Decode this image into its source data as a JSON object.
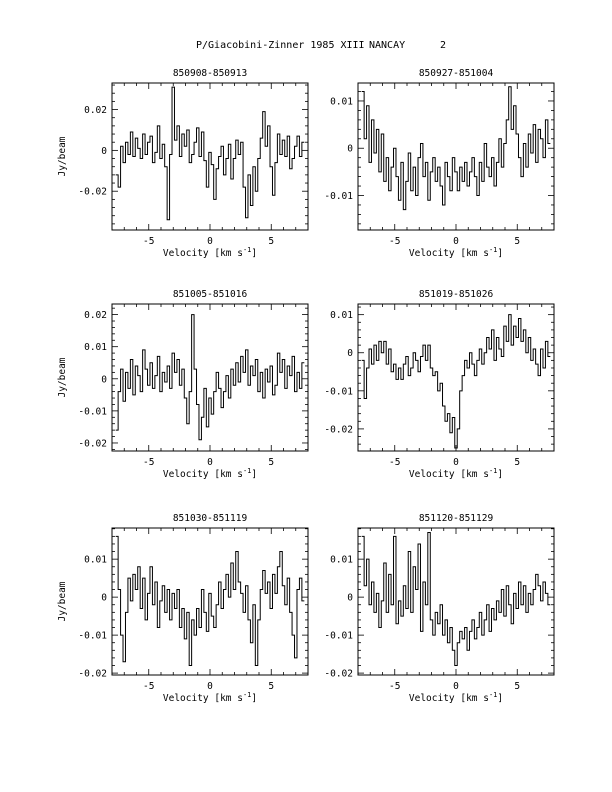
{
  "figure": {
    "title": "P/Giacobini-Zinner 1985 XIII",
    "site": "NANCAY",
    "page_number": "2",
    "line_color": "#000000"
  },
  "chart_data": [
    {
      "type": "line",
      "title": "850908-850913",
      "xlabel_main": "Velocity [km s",
      "xlabel_sup": "-1",
      "xlabel_end": "]",
      "ylabel": "Jy/beam",
      "xlim": [
        -8,
        8
      ],
      "ylim": [
        -0.039,
        0.033
      ],
      "xticks": [
        -5,
        0,
        5
      ],
      "yticks": [
        -0.02,
        0,
        0.02
      ],
      "yticklabels": [
        "-0.02",
        "0",
        "0.02"
      ],
      "x": [
        -7.6,
        -7.4,
        -7.2,
        -7.0,
        -6.8,
        -6.6,
        -6.4,
        -6.2,
        -6.0,
        -5.8,
        -5.6,
        -5.4,
        -5.2,
        -5.0,
        -4.8,
        -4.6,
        -4.4,
        -4.2,
        -4.0,
        -3.8,
        -3.6,
        -3.4,
        -3.2,
        -3.0,
        -2.8,
        -2.6,
        -2.4,
        -2.2,
        -2.0,
        -1.8,
        -1.6,
        -1.4,
        -1.2,
        -1.0,
        -0.8,
        -0.6,
        -0.4,
        -0.2,
        0.0,
        0.2,
        0.4,
        0.6,
        0.8,
        1.0,
        1.2,
        1.4,
        1.6,
        1.8,
        2.0,
        2.2,
        2.4,
        2.6,
        2.8,
        3.0,
        3.2,
        3.4,
        3.6,
        3.8,
        4.0,
        4.2,
        4.4,
        4.6,
        4.8,
        5.0,
        5.2,
        5.4,
        5.6,
        5.8,
        6.0,
        6.2,
        6.4,
        6.6,
        6.8,
        7.0,
        7.2,
        7.4,
        7.6
      ],
      "y": [
        -0.012,
        -0.018,
        0.002,
        -0.006,
        0.004,
        -0.002,
        0.009,
        -0.003,
        0.006,
        0.001,
        -0.004,
        0.008,
        -0.002,
        0.004,
        0.007,
        -0.006,
        -0.001,
        0.012,
        -0.004,
        0.003,
        -0.008,
        -0.034,
        -0.002,
        0.031,
        0.005,
        0.012,
        -0.003,
        0.008,
        0.002,
        0.01,
        -0.006,
        -0.002,
        0.004,
        0.011,
        -0.003,
        0.009,
        -0.005,
        -0.018,
        -0.001,
        -0.007,
        -0.024,
        -0.009,
        -0.003,
        0.002,
        -0.012,
        -0.004,
        0.003,
        -0.014,
        -0.004,
        0.005,
        -0.002,
        0.004,
        -0.018,
        -0.033,
        -0.012,
        -0.027,
        -0.008,
        -0.02,
        -0.004,
        0.006,
        0.019,
        0.002,
        0.012,
        -0.008,
        -0.022,
        -0.006,
        0.008,
        -0.002,
        0.005,
        -0.003,
        0.007,
        -0.009,
        -0.004,
        0.002,
        0.007,
        -0.003,
        0.004
      ]
    },
    {
      "type": "line",
      "title": "850927-851004",
      "xlabel_main": "Velocity [km s",
      "xlabel_sup": "-1",
      "xlabel_end": "]",
      "ylabel": "",
      "xlim": [
        -8,
        8
      ],
      "ylim": [
        -0.0173,
        0.0138
      ],
      "xticks": [
        -5,
        0,
        5
      ],
      "yticks": [
        -0.01,
        0,
        0.01
      ],
      "yticklabels": [
        "-0.01",
        "0",
        "0.01"
      ],
      "x": [
        -7.6,
        -7.4,
        -7.2,
        -7.0,
        -6.8,
        -6.6,
        -6.4,
        -6.2,
        -6.0,
        -5.8,
        -5.6,
        -5.4,
        -5.2,
        -5.0,
        -4.8,
        -4.6,
        -4.4,
        -4.2,
        -4.0,
        -3.8,
        -3.6,
        -3.4,
        -3.2,
        -3.0,
        -2.8,
        -2.6,
        -2.4,
        -2.2,
        -2.0,
        -1.8,
        -1.6,
        -1.4,
        -1.2,
        -1.0,
        -0.8,
        -0.6,
        -0.4,
        -0.2,
        0.0,
        0.2,
        0.4,
        0.6,
        0.8,
        1.0,
        1.2,
        1.4,
        1.6,
        1.8,
        2.0,
        2.2,
        2.4,
        2.6,
        2.8,
        3.0,
        3.2,
        3.4,
        3.6,
        3.8,
        4.0,
        4.2,
        4.4,
        4.6,
        4.8,
        5.0,
        5.2,
        5.4,
        5.6,
        5.8,
        6.0,
        6.2,
        6.4,
        6.6,
        6.8,
        7.0,
        7.2,
        7.4,
        7.6
      ],
      "y": [
        0.012,
        0.002,
        0.009,
        -0.003,
        0.006,
        -0.001,
        0.004,
        -0.005,
        0.003,
        -0.007,
        -0.002,
        -0.009,
        -0.004,
        0.0,
        -0.006,
        -0.011,
        -0.003,
        -0.013,
        -0.007,
        -0.001,
        -0.009,
        -0.004,
        -0.01,
        -0.002,
        0.001,
        -0.006,
        -0.003,
        -0.011,
        -0.005,
        -0.002,
        -0.007,
        -0.004,
        -0.008,
        -0.012,
        -0.003,
        -0.006,
        -0.009,
        -0.002,
        -0.005,
        -0.009,
        -0.004,
        -0.007,
        -0.003,
        -0.008,
        -0.005,
        -0.002,
        -0.006,
        -0.01,
        -0.003,
        -0.007,
        0.001,
        -0.004,
        -0.006,
        -0.002,
        -0.008,
        -0.003,
        0.002,
        -0.004,
        0.001,
        0.006,
        0.013,
        0.004,
        0.009,
        0.003,
        -0.002,
        -0.006,
        0.001,
        -0.004,
        0.003,
        -0.001,
        0.005,
        -0.003,
        0.004,
        0.002,
        -0.002,
        0.006,
        0.001
      ]
    },
    {
      "type": "line",
      "title": "851005-851016",
      "xlabel_main": "Velocity [km s",
      "xlabel_sup": "-1",
      "xlabel_end": "]",
      "ylabel": "Jy/beam",
      "xlim": [
        -8,
        8
      ],
      "ylim": [
        -0.0225,
        0.0233
      ],
      "xticks": [
        -5,
        0,
        5
      ],
      "yticks": [
        -0.02,
        -0.01,
        0,
        0.01,
        0.02
      ],
      "yticklabels": [
        "-0.02",
        "-0.01",
        "0",
        "0.01",
        "0.02"
      ],
      "x": [
        -7.6,
        -7.4,
        -7.2,
        -7.0,
        -6.8,
        -6.6,
        -6.4,
        -6.2,
        -6.0,
        -5.8,
        -5.6,
        -5.4,
        -5.2,
        -5.0,
        -4.8,
        -4.6,
        -4.4,
        -4.2,
        -4.0,
        -3.8,
        -3.6,
        -3.4,
        -3.2,
        -3.0,
        -2.8,
        -2.6,
        -2.4,
        -2.2,
        -2.0,
        -1.8,
        -1.6,
        -1.4,
        -1.2,
        -1.0,
        -0.8,
        -0.6,
        -0.4,
        -0.2,
        0.0,
        0.2,
        0.4,
        0.6,
        0.8,
        1.0,
        1.2,
        1.4,
        1.6,
        1.8,
        2.0,
        2.2,
        2.4,
        2.6,
        2.8,
        3.0,
        3.2,
        3.4,
        3.6,
        3.8,
        4.0,
        4.2,
        4.4,
        4.6,
        4.8,
        5.0,
        5.2,
        5.4,
        5.6,
        5.8,
        6.0,
        6.2,
        6.4,
        6.6,
        6.8,
        7.0,
        7.2,
        7.4,
        7.6
      ],
      "y": [
        -0.016,
        -0.004,
        0.003,
        -0.007,
        0.002,
        -0.003,
        0.006,
        -0.005,
        0.004,
        0.001,
        -0.004,
        0.009,
        0.003,
        -0.002,
        0.005,
        -0.003,
        0.001,
        0.007,
        -0.004,
        0.002,
        -0.001,
        0.004,
        -0.003,
        0.008,
        0.002,
        0.006,
        -0.002,
        0.003,
        -0.006,
        -0.014,
        -0.004,
        0.02,
        0.003,
        -0.008,
        -0.019,
        -0.012,
        -0.003,
        -0.015,
        -0.006,
        -0.011,
        -0.004,
        0.002,
        -0.003,
        -0.009,
        -0.004,
        0.001,
        -0.006,
        0.003,
        -0.002,
        0.005,
        -0.001,
        0.007,
        0.002,
        0.009,
        -0.002,
        0.004,
        0.001,
        0.006,
        -0.004,
        0.002,
        -0.006,
        0.003,
        -0.001,
        0.004,
        -0.005,
        -0.002,
        0.008,
        0.002,
        0.006,
        -0.003,
        0.004,
        0.001,
        0.007,
        -0.004,
        0.002,
        -0.003,
        0.005
      ]
    },
    {
      "type": "line",
      "title": "851019-851026",
      "xlabel_main": "Velocity [km s",
      "xlabel_sup": "-1",
      "xlabel_end": "]",
      "ylabel": "",
      "xlim": [
        -8,
        8
      ],
      "ylim": [
        -0.0258,
        0.0128
      ],
      "xticks": [
        -5,
        0,
        5
      ],
      "yticks": [
        -0.02,
        -0.01,
        0,
        0.01
      ],
      "yticklabels": [
        "-0.02",
        "-0.01",
        "0",
        "0.01"
      ],
      "x": [
        -7.6,
        -7.4,
        -7.2,
        -7.0,
        -6.8,
        -6.6,
        -6.4,
        -6.2,
        -6.0,
        -5.8,
        -5.6,
        -5.4,
        -5.2,
        -5.0,
        -4.8,
        -4.6,
        -4.4,
        -4.2,
        -4.0,
        -3.8,
        -3.6,
        -3.4,
        -3.2,
        -3.0,
        -2.8,
        -2.6,
        -2.4,
        -2.2,
        -2.0,
        -1.8,
        -1.6,
        -1.4,
        -1.2,
        -1.0,
        -0.8,
        -0.6,
        -0.4,
        -0.2,
        0.0,
        0.2,
        0.4,
        0.6,
        0.8,
        1.0,
        1.2,
        1.4,
        1.6,
        1.8,
        2.0,
        2.2,
        2.4,
        2.6,
        2.8,
        3.0,
        3.2,
        3.4,
        3.6,
        3.8,
        4.0,
        4.2,
        4.4,
        4.6,
        4.8,
        5.0,
        5.2,
        5.4,
        5.6,
        5.8,
        6.0,
        6.2,
        6.4,
        6.6,
        6.8,
        7.0,
        7.2,
        7.4,
        7.6
      ],
      "y": [
        -0.002,
        -0.012,
        -0.004,
        0.001,
        -0.003,
        0.002,
        -0.002,
        0.003,
        0.0,
        0.003,
        -0.003,
        0.001,
        -0.005,
        -0.003,
        -0.007,
        -0.004,
        -0.007,
        -0.003,
        -0.001,
        -0.006,
        -0.004,
        0.0,
        -0.002,
        -0.005,
        -0.001,
        0.002,
        -0.002,
        0.002,
        -0.004,
        -0.006,
        -0.005,
        -0.01,
        -0.008,
        -0.014,
        -0.018,
        -0.016,
        -0.021,
        -0.017,
        -0.025,
        -0.02,
        -0.01,
        -0.006,
        -0.002,
        -0.004,
        0.0,
        -0.003,
        -0.006,
        -0.002,
        0.001,
        -0.003,
        0.0,
        0.004,
        0.001,
        0.006,
        -0.002,
        0.004,
        0.001,
        -0.001,
        0.007,
        0.003,
        0.01,
        0.002,
        0.007,
        0.004,
        0.009,
        0.003,
        0.006,
        0.0,
        0.004,
        -0.002,
        0.001,
        -0.003,
        -0.006,
        0.001,
        -0.004,
        0.003,
        -0.001
      ]
    },
    {
      "type": "line",
      "title": "851030-851119",
      "xlabel_main": "Velocity [km s",
      "xlabel_sup": "-1",
      "xlabel_end": "]",
      "ylabel": "Jy/beam",
      "xlim": [
        -8,
        8
      ],
      "ylim": [
        -0.0205,
        0.0182
      ],
      "xticks": [
        -5,
        0,
        5
      ],
      "yticks": [
        -0.02,
        -0.01,
        0,
        0.01
      ],
      "yticklabels": [
        "-0.02",
        "-0.01",
        "0",
        "0.01"
      ],
      "x": [
        -7.6,
        -7.4,
        -7.2,
        -7.0,
        -6.8,
        -6.6,
        -6.4,
        -6.2,
        -6.0,
        -5.8,
        -5.6,
        -5.4,
        -5.2,
        -5.0,
        -4.8,
        -4.6,
        -4.4,
        -4.2,
        -4.0,
        -3.8,
        -3.6,
        -3.4,
        -3.2,
        -3.0,
        -2.8,
        -2.6,
        -2.4,
        -2.2,
        -2.0,
        -1.8,
        -1.6,
        -1.4,
        -1.2,
        -1.0,
        -0.8,
        -0.6,
        -0.4,
        -0.2,
        0.0,
        0.2,
        0.4,
        0.6,
        0.8,
        1.0,
        1.2,
        1.4,
        1.6,
        1.8,
        2.0,
        2.2,
        2.4,
        2.6,
        2.8,
        3.0,
        3.2,
        3.4,
        3.6,
        3.8,
        4.0,
        4.2,
        4.4,
        4.6,
        4.8,
        5.0,
        5.2,
        5.4,
        5.6,
        5.8,
        6.0,
        6.2,
        6.4,
        6.6,
        6.8,
        7.0,
        7.2,
        7.4,
        7.6
      ],
      "y": [
        0.016,
        0.002,
        -0.01,
        -0.017,
        -0.004,
        0.005,
        -0.001,
        0.006,
        0.002,
        0.008,
        -0.003,
        0.005,
        -0.006,
        0.001,
        0.008,
        -0.002,
        0.004,
        -0.008,
        -0.001,
        0.003,
        -0.004,
        0.002,
        -0.006,
        0.001,
        -0.003,
        0.002,
        -0.008,
        -0.003,
        -0.011,
        -0.004,
        -0.018,
        -0.006,
        -0.01,
        -0.003,
        -0.008,
        0.002,
        -0.004,
        -0.009,
        0.001,
        -0.005,
        -0.008,
        -0.002,
        0.004,
        -0.003,
        0.002,
        0.006,
        0.0,
        0.009,
        0.002,
        0.012,
        0.004,
        0.001,
        -0.004,
        0.003,
        -0.006,
        -0.012,
        -0.002,
        -0.018,
        -0.006,
        0.002,
        0.007,
        0.001,
        0.004,
        -0.003,
        0.006,
        0.001,
        0.008,
        0.012,
        0.003,
        -0.002,
        0.005,
        -0.004,
        -0.01,
        -0.016,
        0.002,
        0.005,
        -0.001
      ]
    },
    {
      "type": "line",
      "title": "851120-851129",
      "xlabel_main": "Velocity [km s",
      "xlabel_sup": "-1",
      "xlabel_end": "]",
      "ylabel": "",
      "xlim": [
        -8,
        8
      ],
      "ylim": [
        -0.0205,
        0.0182
      ],
      "xticks": [
        -5,
        0,
        5
      ],
      "yticks": [
        -0.02,
        -0.01,
        0,
        0.01
      ],
      "yticklabels": [
        "-0.02",
        "-0.01",
        "0",
        "0.01"
      ],
      "x": [
        -7.6,
        -7.4,
        -7.2,
        -7.0,
        -6.8,
        -6.6,
        -6.4,
        -6.2,
        -6.0,
        -5.8,
        -5.6,
        -5.4,
        -5.2,
        -5.0,
        -4.8,
        -4.6,
        -4.4,
        -4.2,
        -4.0,
        -3.8,
        -3.6,
        -3.4,
        -3.2,
        -3.0,
        -2.8,
        -2.6,
        -2.4,
        -2.2,
        -2.0,
        -1.8,
        -1.6,
        -1.4,
        -1.2,
        -1.0,
        -0.8,
        -0.6,
        -0.4,
        -0.2,
        0.0,
        0.2,
        0.4,
        0.6,
        0.8,
        1.0,
        1.2,
        1.4,
        1.6,
        1.8,
        2.0,
        2.2,
        2.4,
        2.6,
        2.8,
        3.0,
        3.2,
        3.4,
        3.6,
        3.8,
        4.0,
        4.2,
        4.4,
        4.6,
        4.8,
        5.0,
        5.2,
        5.4,
        5.6,
        5.8,
        6.0,
        6.2,
        6.4,
        6.6,
        6.8,
        7.0,
        7.2,
        7.4,
        7.6
      ],
      "y": [
        0.016,
        0.003,
        0.01,
        -0.002,
        0.004,
        -0.004,
        0.001,
        -0.008,
        -0.001,
        0.009,
        -0.004,
        0.006,
        -0.002,
        0.016,
        -0.007,
        -0.001,
        -0.005,
        0.003,
        -0.003,
        0.012,
        -0.004,
        0.008,
        0.002,
        0.014,
        -0.009,
        0.004,
        -0.002,
        0.017,
        -0.006,
        -0.01,
        -0.004,
        -0.007,
        -0.002,
        -0.01,
        -0.006,
        -0.012,
        -0.008,
        -0.014,
        -0.018,
        -0.012,
        -0.009,
        -0.011,
        -0.008,
        -0.014,
        -0.009,
        -0.006,
        -0.011,
        -0.008,
        -0.004,
        -0.01,
        -0.006,
        -0.002,
        -0.009,
        -0.003,
        -0.006,
        -0.001,
        -0.004,
        0.002,
        -0.005,
        0.003,
        -0.002,
        -0.007,
        0.001,
        -0.003,
        0.004,
        -0.002,
        0.003,
        -0.004,
        0.001,
        -0.002,
        0.002,
        0.006,
        0.003,
        -0.001,
        0.004,
        0.001,
        -0.002
      ]
    }
  ]
}
